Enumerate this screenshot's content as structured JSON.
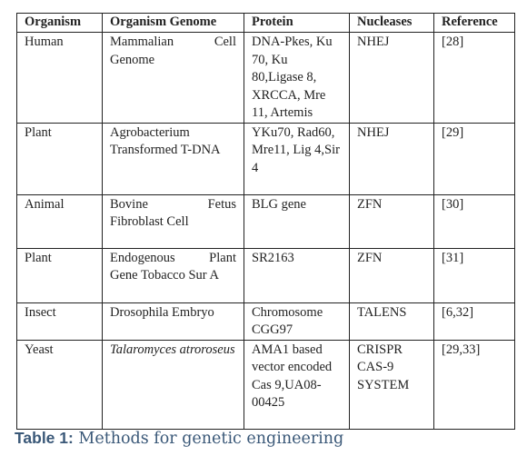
{
  "table": {
    "header": [
      "Organism",
      "Organism Genome",
      "Protein",
      "Nucleases",
      "Reference"
    ],
    "rows": [
      [
        "Human",
        "Mammalian Cell Genome",
        "DNA-Pkes, Ku 70, Ku 80,Ligase 8, XRCCA, Mre 11, Artemis",
        "NHEJ",
        "[28]"
      ],
      [
        "Plant",
        "Agrobacterium Transformed T-DNA",
        "YKu70, Rad60, Mre11, Lig 4,Sir 4",
        "NHEJ",
        "[29]"
      ],
      [
        "Animal",
        "Bovine Fetus Fibroblast Cell",
        "BLG gene",
        "ZFN",
        "[30]"
      ],
      [
        "Plant",
        "Endogenous Plant Gene Tobacco Sur A",
        "SR2163",
        "ZFN",
        "[31]"
      ],
      [
        "Insect",
        "Drosophila Embryo",
        "Chromosome CGG97",
        "TALENS",
        "[6,32]"
      ],
      [
        "Yeast",
        "Talaromyces atroroseus",
        "AMA1 based vector encoded Cas 9,UA08-00425",
        "CRISPR CAS-9 SYSTEM",
        "[29,33]"
      ]
    ]
  },
  "caption": {
    "label": "Table 1:",
    "text": "Methods for genetic engineering"
  }
}
